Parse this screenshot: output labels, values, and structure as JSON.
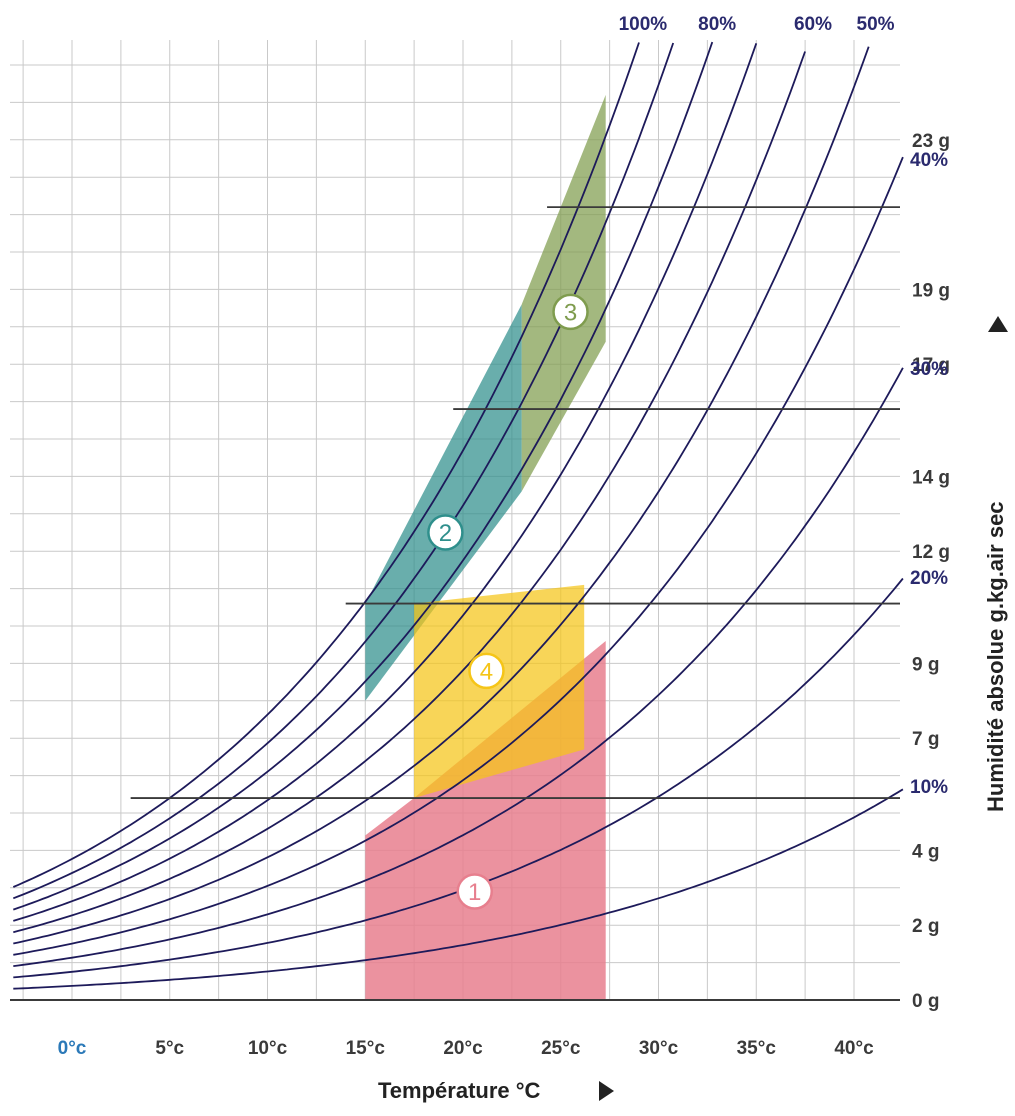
{
  "chart_data": {
    "type": "psychrometric",
    "xlabel": "Température °C",
    "ylabel": "Humidité absolue g.kg.air sec",
    "x_ticks": [
      "0°c",
      "5°c",
      "10°c",
      "15°c",
      "20°c",
      "25°c",
      "30°c",
      "35°c",
      "40°c"
    ],
    "x_tick_values": [
      0,
      5,
      10,
      15,
      20,
      25,
      30,
      35,
      40
    ],
    "y_ticks": [
      {
        "label": "0 g",
        "value": 0
      },
      {
        "label": "2 g",
        "value": 2
      },
      {
        "label": "4 g",
        "value": 4
      },
      {
        "label": "7 g",
        "value": 7
      },
      {
        "label": "9 g",
        "value": 9
      },
      {
        "label": "12 g",
        "value": 12
      },
      {
        "label": "14 g",
        "value": 14
      },
      {
        "label": "17 g",
        "value": 17
      },
      {
        "label": "19 g",
        "value": 19
      },
      {
        "label": "23 g",
        "value": 23
      }
    ],
    "xlim": [
      -3,
      42
    ],
    "ylim": [
      0,
      25.5
    ],
    "rh_top_labels": [
      {
        "label": "100%",
        "rh": 100
      },
      {
        "label": "80%",
        "rh": 80
      },
      {
        "label": "60%",
        "rh": 60
      },
      {
        "label": "50%",
        "rh": 50
      }
    ],
    "rh_side_labels": [
      {
        "label": "40%",
        "rh": 40
      },
      {
        "label": "30%",
        "rh": 30
      },
      {
        "label": "20%",
        "rh": 20
      },
      {
        "label": "10%",
        "rh": 10
      }
    ],
    "rh_curves": [
      100,
      90,
      80,
      70,
      60,
      50,
      40,
      30,
      20,
      10
    ],
    "reference_lines": [
      {
        "y": 5.4,
        "x_start": 3
      },
      {
        "y": 10.6,
        "x_start": 14
      },
      {
        "y": 15.8,
        "x_start": 19.5
      },
      {
        "y": 21.2,
        "x_start": 24.3
      }
    ],
    "zones": [
      {
        "id": "1",
        "label": "1",
        "color": "#e77f8e",
        "opacity": 0.85,
        "polygon": [
          [
            15,
            0
          ],
          [
            27.3,
            0
          ],
          [
            27.3,
            9.6
          ],
          [
            17.5,
            5.4
          ],
          [
            15,
            4.4
          ]
        ],
        "marker": [
          20.6,
          2.9
        ]
      },
      {
        "id": "2",
        "label": "2",
        "color": "#2f8f8c",
        "opacity": 0.72,
        "polygon": [
          [
            15,
            8.0
          ],
          [
            23,
            13.6
          ],
          [
            23,
            18.6
          ],
          [
            15,
            10.6
          ]
        ],
        "marker": [
          19.1,
          12.5
        ]
      },
      {
        "id": "3",
        "label": "3",
        "color": "#7f9c4e",
        "opacity": 0.72,
        "polygon": [
          [
            23,
            13.6
          ],
          [
            27.3,
            17.6
          ],
          [
            27.3,
            24.2
          ],
          [
            23,
            18.6
          ]
        ],
        "marker": [
          25.5,
          18.4
        ]
      },
      {
        "id": "4",
        "label": "4",
        "color": "#f5c518",
        "opacity": 0.72,
        "polygon": [
          [
            17.5,
            5.4
          ],
          [
            26.2,
            6.7
          ],
          [
            26.2,
            11.1
          ],
          [
            17.5,
            10.6
          ]
        ],
        "marker": [
          21.2,
          8.8
        ]
      }
    ]
  }
}
